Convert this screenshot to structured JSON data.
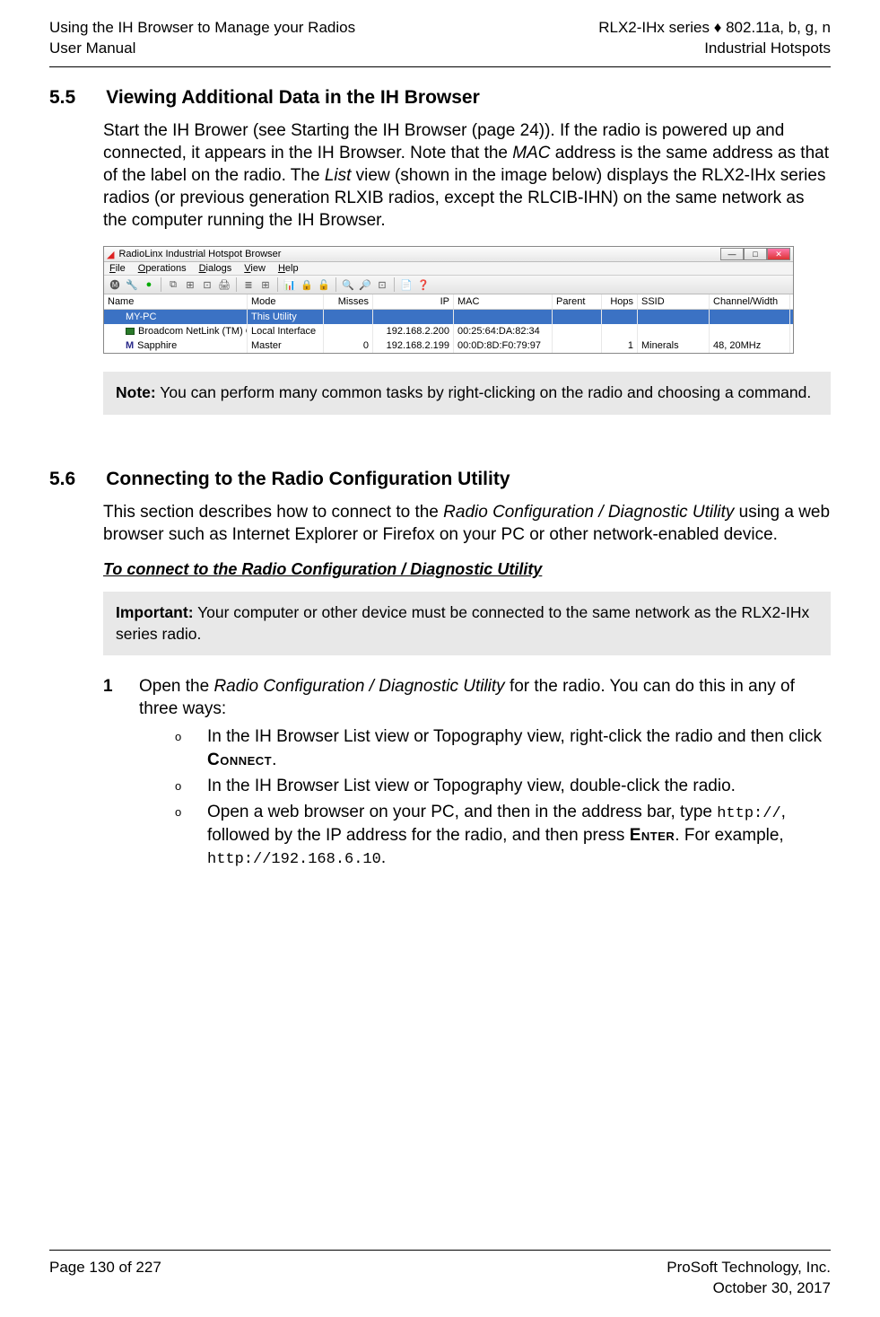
{
  "header": {
    "left_line1": "Using the IH Browser to Manage your Radios",
    "left_line2": "User Manual",
    "right_line1": "RLX2-IHx series ♦ 802.11a, b, g, n",
    "right_line2": "Industrial Hotspots"
  },
  "section55": {
    "number": "5.5",
    "title": "Viewing Additional Data in the IH Browser",
    "para_pre": "Start the IH Brower (see Starting the IH Browser (page 24)). If the radio is powered up and connected, it appears in the IH Browser. Note that the ",
    "mac_word": "MAC",
    "para_mid": " address is the same address as that of the label on the radio. The ",
    "list_word": "List",
    "para_post": " view (shown in the image below) displays the RLX2-IHx series radios (or previous generation RLXIB radios, except the RLCIB-IHN) on the same network as the computer running the IH Browser."
  },
  "screenshot": {
    "title": "RadioLinx Industrial Hotspot Browser",
    "menus": [
      "File",
      "Operations",
      "Dialogs",
      "View",
      "Help"
    ],
    "columns": [
      "Name",
      "Mode",
      "Misses",
      "IP",
      "MAC",
      "Parent",
      "Hops",
      "SSID",
      "Channel/Width"
    ],
    "rows": [
      {
        "name": "MY-PC",
        "mode": "This Utility",
        "misses": "",
        "ip": "",
        "mac": "",
        "parent": "",
        "hops": "",
        "ssid": "",
        "chw": "",
        "highlight": true,
        "icon": ""
      },
      {
        "name": "Broadcom NetLink (TM) Gigabit Eth...",
        "mode": "Local Interface",
        "misses": "",
        "ip": "192.168.2.200",
        "mac": "00:25:64:DA:82:34",
        "parent": "",
        "hops": "",
        "ssid": "",
        "chw": "",
        "highlight": false,
        "icon": "nic"
      },
      {
        "name": "Sapphire",
        "mode": "Master",
        "misses": "0",
        "ip": "192.168.2.199",
        "mac": "00:0D:8D:F0:79:97",
        "parent": "",
        "hops": "1",
        "ssid": "Minerals",
        "chw": "48, 20MHz",
        "highlight": false,
        "icon": "m"
      }
    ],
    "colors": {
      "highlight_bg": "#3b72c4",
      "highlight_fg": "#ffffff",
      "background": "#ffffff",
      "header_bg": "#ffffff",
      "border": "#cccccc"
    }
  },
  "note": {
    "label": "Note:",
    "text": " You can perform many common tasks by right-clicking on the radio and choosing a command."
  },
  "section56": {
    "number": "5.6",
    "title": "Connecting to the Radio Configuration Utility",
    "para_pre": "This section describes how to connect to the ",
    "italic1": "Radio Configuration / Diagnostic Utility",
    "para_post": " using a web browser such as Internet Explorer or Firefox on your PC or other network-enabled device.",
    "subheading": "To connect to the Radio Configuration / Diagnostic Utility"
  },
  "important": {
    "label": "Important:",
    "text": " Your computer or other device must be connected to the same network as the RLX2-IHx series radio."
  },
  "step1": {
    "num": "1",
    "pre": "Open the ",
    "italic": "Radio Configuration / Diagnostic Utility",
    "post": " for the radio. You can do this in any of three ways:"
  },
  "sub_a": {
    "bullet": "o",
    "pre": "In the IH Browser List view or Topography view, right-click the radio and then click ",
    "sc": "Connect",
    "post": "."
  },
  "sub_b": {
    "bullet": "o",
    "text": "In the IH Browser List view or Topography view, double-click the radio."
  },
  "sub_c": {
    "bullet": "o",
    "pre": "Open a web browser on your PC, and then in the address bar, type ",
    "mono1": "http://",
    "mid": ", followed by the IP address for the radio, and then press ",
    "sc": "Enter",
    "post1": ". For example, ",
    "mono2": "http://192.168.6.10",
    "post2": "."
  },
  "footer": {
    "left": "Page 130 of 227",
    "right_line1": "ProSoft Technology, Inc.",
    "right_line2": "October 30, 2017"
  }
}
